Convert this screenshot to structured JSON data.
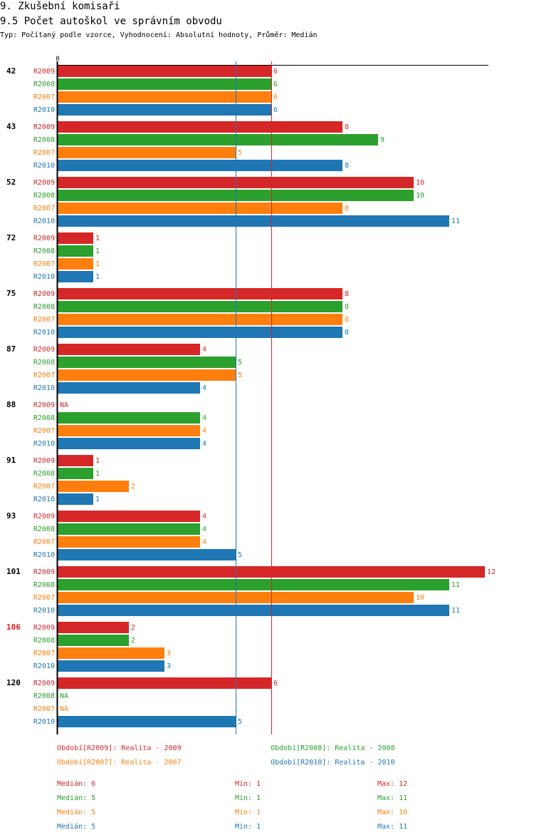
{
  "header": {
    "title": "9. Zkušební komisaři",
    "subtitle": "9.5 Počet autoškol ve správním obvodu",
    "description": "Typ: Počítaný podle vzorce, Vyhodnocení: Absolutní hodnoty, Průměr: Medián"
  },
  "colors": {
    "R2009": "#d62728",
    "R2008": "#2ca02c",
    "R2007": "#ff7f0e",
    "R2010": "#1f77b4"
  },
  "chart_data": {
    "type": "bar",
    "orientation": "horizontal",
    "title": "9.5 Počet autoškol ve správním obvodu",
    "axis_zero_label": "0",
    "xlim": [
      0,
      12
    ],
    "series_order": [
      "R2009",
      "R2008",
      "R2007",
      "R2010"
    ],
    "groups": [
      {
        "label": "42",
        "highlight": false,
        "values": {
          "R2009": 6,
          "R2008": 6,
          "R2007": 6,
          "R2010": 6
        }
      },
      {
        "label": "43",
        "highlight": false,
        "values": {
          "R2009": 8,
          "R2008": 9,
          "R2007": 5,
          "R2010": 8
        }
      },
      {
        "label": "52",
        "highlight": false,
        "values": {
          "R2009": 10,
          "R2008": 10,
          "R2007": 8,
          "R2010": 11
        }
      },
      {
        "label": "72",
        "highlight": false,
        "values": {
          "R2009": 1,
          "R2008": 1,
          "R2007": 1,
          "R2010": 1
        }
      },
      {
        "label": "75",
        "highlight": false,
        "values": {
          "R2009": 8,
          "R2008": 8,
          "R2007": 8,
          "R2010": 8
        }
      },
      {
        "label": "87",
        "highlight": false,
        "values": {
          "R2009": 4,
          "R2008": 5,
          "R2007": 5,
          "R2010": 4
        }
      },
      {
        "label": "88",
        "highlight": false,
        "values": {
          "R2009": null,
          "R2008": 4,
          "R2007": 4,
          "R2010": 4
        }
      },
      {
        "label": "91",
        "highlight": false,
        "values": {
          "R2009": 1,
          "R2008": 1,
          "R2007": 2,
          "R2010": 1
        }
      },
      {
        "label": "93",
        "highlight": false,
        "values": {
          "R2009": 4,
          "R2008": 4,
          "R2007": 4,
          "R2010": 5
        }
      },
      {
        "label": "101",
        "highlight": false,
        "values": {
          "R2009": 12,
          "R2008": 11,
          "R2007": 10,
          "R2010": 11
        }
      },
      {
        "label": "106",
        "highlight": true,
        "values": {
          "R2009": 2,
          "R2008": 2,
          "R2007": 3,
          "R2010": 3
        }
      },
      {
        "label": "120",
        "highlight": false,
        "values": {
          "R2009": 6,
          "R2008": null,
          "R2007": null,
          "R2010": 5
        }
      }
    ],
    "na_label": "NA",
    "reference_lines": [
      {
        "series": "R2010",
        "value": 5,
        "meaning": "median"
      },
      {
        "series": "R2009",
        "value": 6,
        "meaning": "median"
      }
    ]
  },
  "legend": [
    {
      "series": "R2009",
      "text": "Období[R2009]: Realita - 2009"
    },
    {
      "series": "R2008",
      "text": "Období[R2008]: Realita - 2008"
    },
    {
      "series": "R2007",
      "text": "Období[R2007]: Realita - 2007"
    },
    {
      "series": "R2010",
      "text": "Období[R2010]: Realita - 2010"
    }
  ],
  "stats": [
    {
      "series": "R2009",
      "median": "Medián: 6",
      "min": "Min: 1",
      "max": "Max: 12"
    },
    {
      "series": "R2008",
      "median": "Medián: 5",
      "min": "Min: 1",
      "max": "Max: 11"
    },
    {
      "series": "R2007",
      "median": "Medián: 5",
      "min": "Min: 1",
      "max": "Max: 10"
    },
    {
      "series": "R2010",
      "median": "Medián: 5",
      "min": "Min: 1",
      "max": "Max: 11"
    }
  ]
}
